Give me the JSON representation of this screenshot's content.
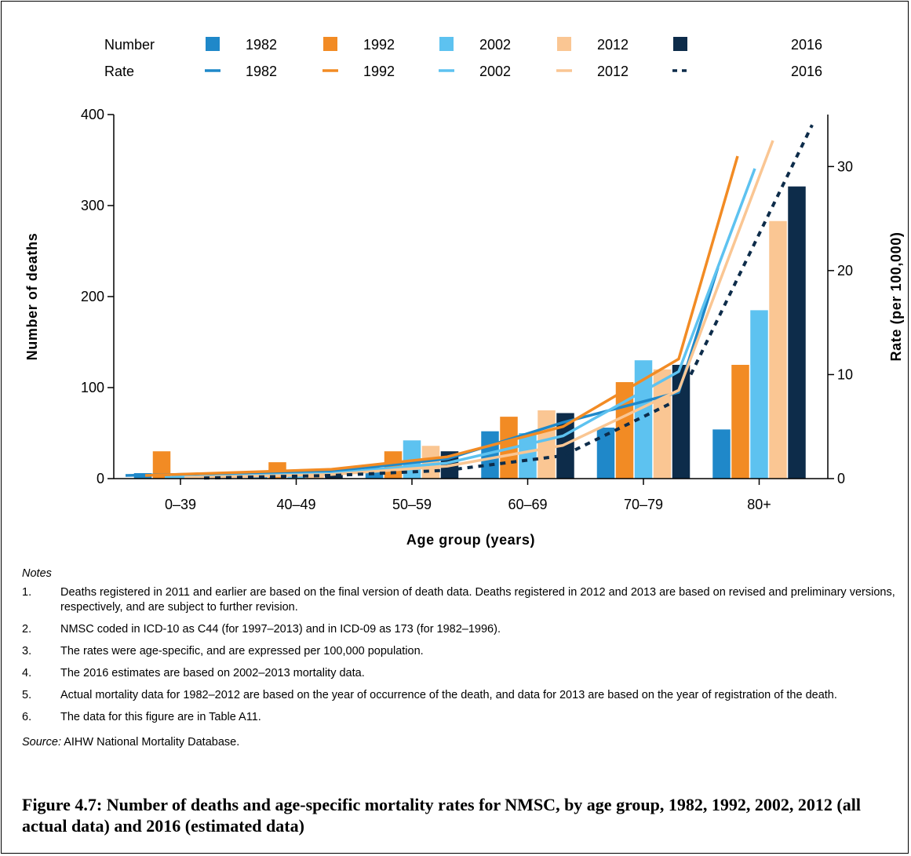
{
  "chart_data": {
    "type": "bar",
    "categories": [
      "0–39",
      "40–49",
      "50–59",
      "60–69",
      "70–79",
      "80+"
    ],
    "xlabel": "Age group (years)",
    "ylabel": "Number of deaths",
    "y2label": "Rate (per 100,000)",
    "ylim": [
      0,
      400
    ],
    "y2lim": [
      0,
      35
    ],
    "yticks": [
      0,
      100,
      200,
      300,
      400
    ],
    "y2ticks": [
      0,
      10,
      20,
      30
    ],
    "grid": false,
    "legend_position": "top",
    "legend": {
      "number_label": "Number",
      "rate_label": "Rate",
      "years": [
        "1982",
        "1992",
        "2002",
        "2012",
        "2016"
      ]
    },
    "series": [
      {
        "name": "1982",
        "color": "#1f88c9",
        "values": [
          6,
          2,
          12,
          52,
          56,
          54
        ]
      },
      {
        "name": "1992",
        "color": "#f28b24",
        "values": [
          30,
          18,
          30,
          68,
          106,
          125
        ]
      },
      {
        "name": "2002",
        "color": "#5dc2f0",
        "values": [
          3,
          8,
          42,
          50,
          130,
          185
        ]
      },
      {
        "name": "2012",
        "color": "#fac693",
        "values": [
          2,
          6,
          36,
          75,
          120,
          283
        ]
      },
      {
        "name": "2016",
        "color": "#0d2c4a",
        "values": [
          2,
          5,
          30,
          72,
          125,
          321
        ]
      }
    ],
    "rate_series": [
      {
        "name": "1982",
        "color": "#1f88c9",
        "dashed": false,
        "values": [
          0.3,
          0.7,
          1.9,
          5.4,
          8.3,
          20.3
        ]
      },
      {
        "name": "1992",
        "color": "#f28b24",
        "dashed": false,
        "values": [
          0.3,
          0.9,
          2.1,
          5.0,
          11.5,
          31.0
        ]
      },
      {
        "name": "2002",
        "color": "#5dc2f0",
        "dashed": false,
        "values": [
          0.1,
          0.5,
          1.5,
          4.1,
          10.3,
          29.8
        ]
      },
      {
        "name": "2012",
        "color": "#fac693",
        "dashed": false,
        "values": [
          0.1,
          0.4,
          1.2,
          3.2,
          8.5,
          32.5
        ]
      },
      {
        "name": "2016",
        "color": "#0d2c4a",
        "dashed": true,
        "values": [
          0.05,
          0.3,
          0.8,
          2.2,
          7.6,
          34.0
        ]
      }
    ]
  },
  "notes": {
    "heading": "Notes",
    "items": [
      {
        "num": "1.",
        "text": "Deaths registered in 2011 and earlier are based on the final version of death data. Deaths registered in 2012 and 2013 are based on revised and preliminary versions, respectively, and are subject to further revision."
      },
      {
        "num": "2.",
        "text": "NMSC coded in ICD-10 as C44 (for 1997–2013) and in ICD-09 as 173 (for 1982–1996)."
      },
      {
        "num": "3.",
        "text": "The rates were age-specific, and are expressed per 100,000 population."
      },
      {
        "num": "4.",
        "text": "The 2016 estimates are based on 2002–2013 mortality data."
      },
      {
        "num": "5.",
        "text": "Actual mortality data for 1982–2012 are based on the year of occurrence of the death, and data for 2013 are based on the year of registration of the death."
      },
      {
        "num": "6.",
        "text": "The data for this figure are in Table A11."
      }
    ]
  },
  "source": {
    "label": "Source:",
    "text": " AIHW National Mortality Database."
  },
  "caption": "Figure 4.7: Number of deaths and age-specific mortality rates for NMSC, by age group, 1982, 1992, 2002, 2012 (all actual data) and 2016 (estimated data)"
}
